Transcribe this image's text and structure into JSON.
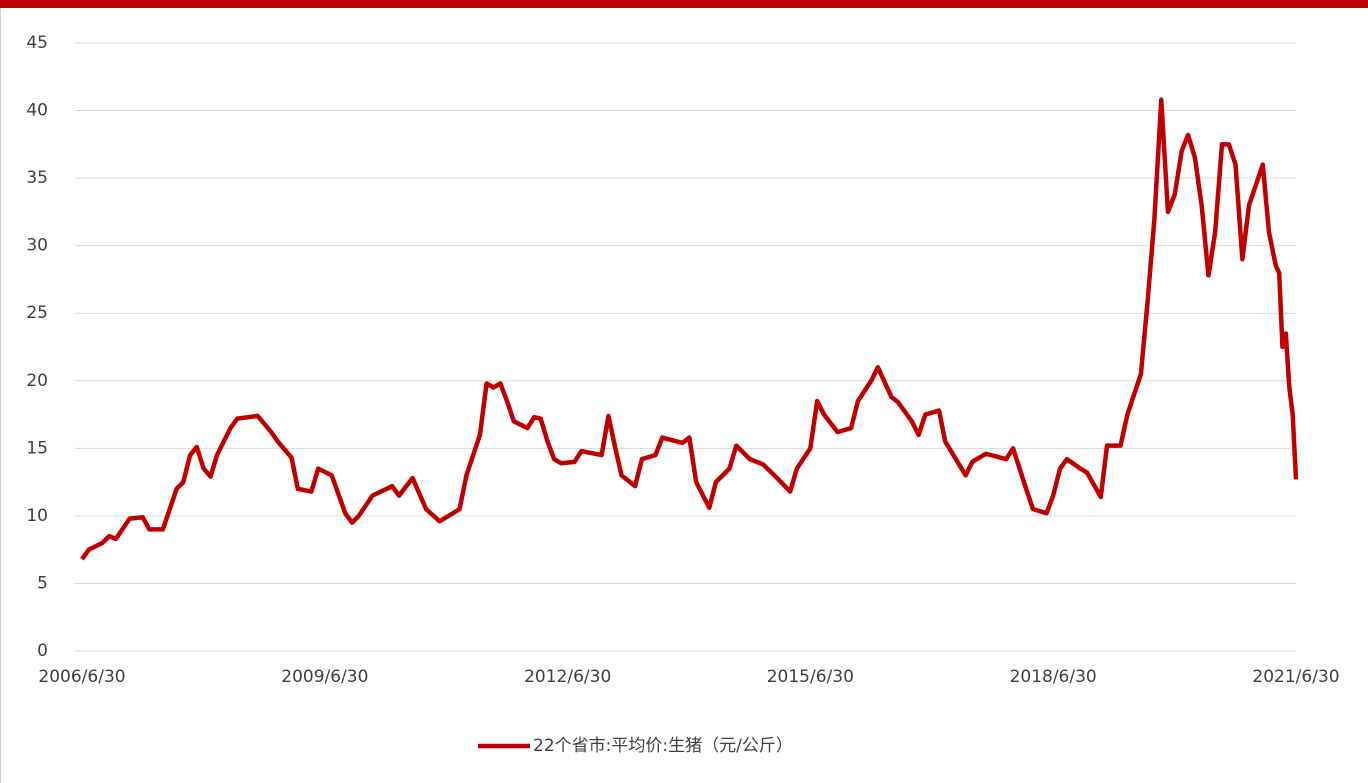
{
  "chart_data": {
    "type": "line",
    "x": [
      "2006/6/30",
      "2006/7/31",
      "2006/9/30",
      "2006/10/31",
      "2006/11/30",
      "2007/1/31",
      "2007/3/31",
      "2007/4/30",
      "2007/6/30",
      "2007/7/31",
      "2007/8/31",
      "2007/9/30",
      "2007/10/31",
      "2007/11/30",
      "2007/12/31",
      "2008/1/31",
      "2008/2/29",
      "2008/4/30",
      "2008/5/31",
      "2008/8/31",
      "2008/10/31",
      "2008/11/30",
      "2009/1/31",
      "2009/2/28",
      "2009/4/30",
      "2009/5/31",
      "2009/7/31",
      "2009/9/30",
      "2009/10/31",
      "2009/11/30",
      "2010/1/31",
      "2010/4/30",
      "2010/5/31",
      "2010/7/31",
      "2010/9/30",
      "2010/11/30",
      "2010/12/31",
      "2011/2/28",
      "2011/3/31",
      "2011/5/31",
      "2011/6/30",
      "2011/7/31",
      "2011/8/31",
      "2011/9/30",
      "2011/10/31",
      "2011/12/31",
      "2012/1/31",
      "2012/2/29",
      "2012/3/31",
      "2012/4/30",
      "2012/5/31",
      "2012/7/31",
      "2012/8/31",
      "2012/11/30",
      "2012/12/31",
      "2013/1/31",
      "2013/2/28",
      "2013/4/30",
      "2013/5/31",
      "2013/7/31",
      "2013/8/31",
      "2013/11/30",
      "2013/12/31",
      "2014/1/31",
      "2014/3/31",
      "2014/4/30",
      "2014/6/30",
      "2014/7/31",
      "2014/9/30",
      "2014/11/30",
      "2015/1/31",
      "2015/3/31",
      "2015/4/30",
      "2015/6/30",
      "2015/7/31",
      "2015/8/31",
      "2015/10/31",
      "2015/12/31",
      "2016/1/31",
      "2016/3/31",
      "2016/4/30",
      "2016/6/30",
      "2016/7/31",
      "2016/9/30",
      "2016/10/31",
      "2016/11/30",
      "2017/1/31",
      "2017/2/28",
      "2017/5/31",
      "2017/6/30",
      "2017/8/31",
      "2017/11/30",
      "2017/12/31",
      "2018/2/28",
      "2018/3/31",
      "2018/5/31",
      "2018/6/30",
      "2018/7/31",
      "2018/8/31",
      "2018/10/31",
      "2018/11/30",
      "2019/1/31",
      "2019/2/28",
      "2019/4/30",
      "2019/5/31",
      "2019/7/31",
      "2019/8/31",
      "2019/9/30",
      "2019/10/31",
      "2019/11/30",
      "2019/12/31",
      "2020/1/31",
      "2020/2/29",
      "2020/3/31",
      "2020/4/30",
      "2020/5/31",
      "2020/6/30",
      "2020/7/31",
      "2020/8/31",
      "2020/9/30",
      "2020/10/31",
      "2020/11/30",
      "2021/1/31",
      "2021/2/28",
      "2021/3/31",
      "2021/4/15",
      "2021/4/30",
      "2021/5/15",
      "2021/5/31",
      "2021/6/15",
      "2021/6/30"
    ],
    "series": [
      {
        "name": "22个省市:平均价:生猪（元/公斤）",
        "color": "#c00000",
        "values": [
          6.8,
          7.5,
          8.0,
          8.5,
          8.3,
          9.8,
          9.9,
          9.0,
          9.0,
          10.5,
          12.0,
          12.5,
          14.5,
          15.1,
          13.5,
          12.9,
          14.5,
          16.5,
          17.2,
          17.4,
          16.2,
          15.5,
          14.3,
          12.0,
          11.8,
          13.5,
          13.0,
          10.2,
          9.5,
          10.0,
          11.5,
          12.2,
          11.5,
          12.8,
          10.5,
          9.6,
          9.9,
          10.5,
          13.0,
          16.0,
          19.8,
          19.5,
          19.8,
          18.5,
          17.0,
          16.5,
          17.3,
          17.2,
          15.5,
          14.2,
          13.9,
          14.0,
          14.8,
          14.5,
          17.4,
          15.0,
          13.0,
          12.2,
          14.2,
          14.5,
          15.8,
          15.4,
          15.8,
          12.5,
          10.6,
          12.5,
          13.5,
          15.2,
          14.2,
          13.8,
          12.8,
          11.8,
          13.5,
          15.0,
          18.5,
          17.5,
          16.2,
          16.5,
          18.5,
          20.0,
          21.0,
          18.8,
          18.4,
          17.0,
          16.0,
          17.5,
          17.8,
          15.5,
          13.0,
          14.0,
          14.6,
          14.2,
          15.0,
          12.0,
          10.5,
          10.2,
          11.5,
          13.5,
          14.2,
          13.5,
          13.2,
          11.4,
          15.2,
          15.2,
          17.5,
          20.5,
          26.0,
          32.0,
          40.8,
          32.5,
          33.8,
          37.0,
          38.2,
          36.5,
          33.0,
          27.8,
          31.0,
          37.5,
          37.5,
          36.0,
          29.0,
          33.0,
          36.0,
          31.0,
          28.5,
          28.0,
          22.5,
          23.5,
          19.5,
          17.5,
          12.7
        ]
      }
    ],
    "xlim": [
      "2006/6/30",
      "2021/6/30"
    ],
    "xticks": [
      "2006/6/30",
      "2009/6/30",
      "2012/6/30",
      "2015/6/30",
      "2018/6/30",
      "2021/6/30"
    ],
    "ylim": [
      0,
      45
    ],
    "yticks": [
      0,
      5,
      10,
      15,
      20,
      25,
      30,
      35,
      40,
      45
    ],
    "grid": true,
    "legend": "bottom"
  }
}
